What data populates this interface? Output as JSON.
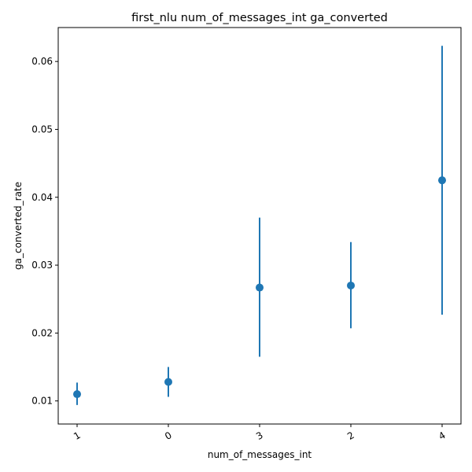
{
  "chart_data": {
    "type": "scatter",
    "title": "first_nlu num_of_messages_int ga_converted",
    "xlabel": "num_of_messages_int",
    "ylabel": "ga_converted_rate",
    "categories": [
      "1",
      "0",
      "3",
      "2",
      "4"
    ],
    "series": [
      {
        "values": [
          0.011,
          0.0128,
          0.0267,
          0.027,
          0.0425
        ],
        "error_low": [
          0.0094,
          0.0106,
          0.0165,
          0.0207,
          0.0227
        ],
        "error_high": [
          0.0127,
          0.015,
          0.037,
          0.0334,
          0.0623
        ]
      }
    ],
    "yticks": [
      0.01,
      0.02,
      0.03,
      0.04,
      0.05,
      0.06
    ],
    "ytick_labels": [
      "0.01",
      "0.02",
      "0.03",
      "0.04",
      "0.05",
      "0.06"
    ],
    "ylim": [
      0.0066,
      0.065
    ],
    "grid": false,
    "color": "#1f77b4",
    "xtick_rotation_deg": -30
  }
}
